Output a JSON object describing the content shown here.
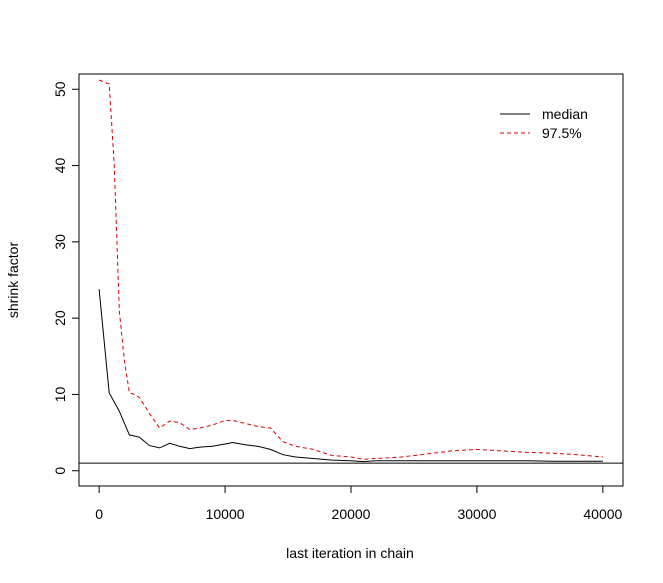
{
  "chart_data": {
    "type": "line",
    "xlabel": "last iteration in chain",
    "ylabel": "shrink factor",
    "xlim": [
      -1600,
      41600
    ],
    "ylim": [
      -2,
      52
    ],
    "xticks": [
      0,
      10000,
      20000,
      30000,
      40000
    ],
    "yticks": [
      0,
      10,
      20,
      30,
      40,
      50
    ],
    "reference_line": 1,
    "legend_position": "top-right",
    "series": [
      {
        "name": "median",
        "color": "#000000",
        "dash": "solid",
        "x": [
          0,
          800,
          1600,
          2400,
          3200,
          4000,
          4800,
          5600,
          6400,
          7200,
          8000,
          9000,
          10000,
          10600,
          11600,
          12600,
          13600,
          14600,
          15600,
          17000,
          18500,
          20000,
          21000,
          22000,
          24000,
          26000,
          28000,
          30000,
          32000,
          34000,
          36000,
          38000,
          40000
        ],
        "y": [
          23.8,
          10.2,
          7.8,
          4.7,
          4.4,
          3.3,
          3.0,
          3.6,
          3.2,
          2.9,
          3.1,
          3.2,
          3.5,
          3.7,
          3.4,
          3.2,
          2.8,
          2.1,
          1.8,
          1.6,
          1.4,
          1.3,
          1.2,
          1.3,
          1.3,
          1.3,
          1.3,
          1.3,
          1.3,
          1.3,
          1.25,
          1.25,
          1.25
        ]
      },
      {
        "name": "97.5%",
        "color": "#dd0000",
        "dash": "dashed",
        "x": [
          0,
          800,
          1200,
          1600,
          2000,
          2400,
          2800,
          3200,
          4000,
          4800,
          5600,
          6400,
          7200,
          8000,
          9000,
          10000,
          10600,
          11600,
          12600,
          13600,
          14600,
          15600,
          17000,
          18500,
          20000,
          21000,
          22000,
          24000,
          26000,
          28000,
          30000,
          32000,
          34000,
          36000,
          38000,
          40000
        ],
        "y": [
          51.2,
          50.7,
          40.0,
          21.0,
          14.5,
          10.2,
          10.0,
          9.6,
          7.5,
          5.6,
          6.5,
          6.3,
          5.4,
          5.6,
          6.0,
          6.6,
          6.6,
          6.2,
          5.8,
          5.6,
          3.8,
          3.2,
          2.8,
          2.0,
          1.8,
          1.5,
          1.6,
          1.8,
          2.2,
          2.6,
          2.8,
          2.6,
          2.4,
          2.3,
          2.1,
          1.8
        ]
      }
    ]
  }
}
